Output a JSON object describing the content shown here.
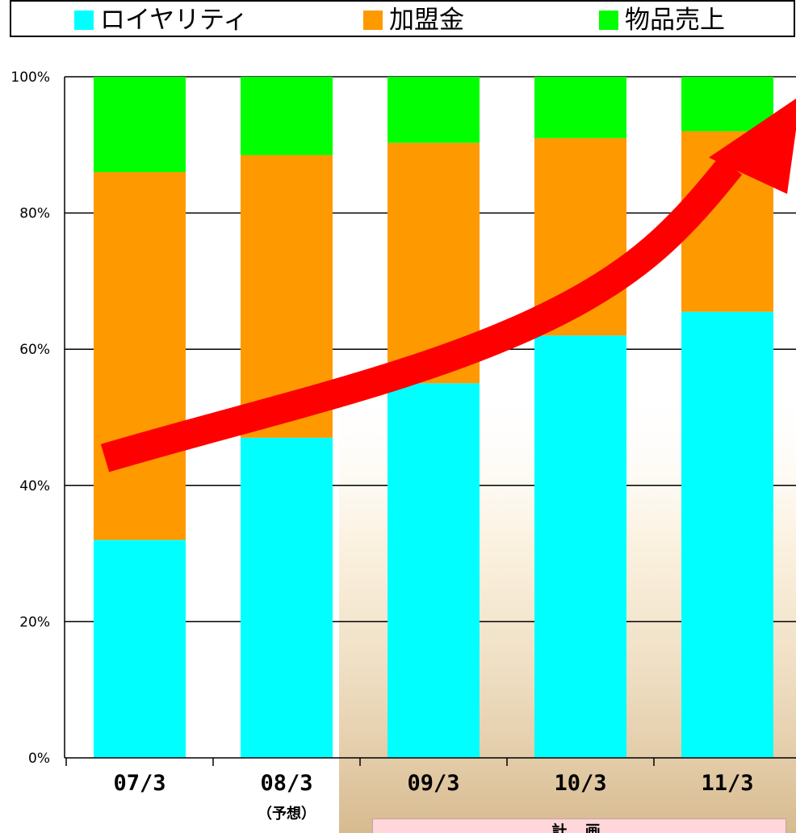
{
  "colors": {
    "royalty": "#00ffff",
    "franchise_fee": "#ff9900",
    "merchandise": "#00ff00",
    "arrow": "#ff0000",
    "plan_box": "#ffd6d9"
  },
  "legend": [
    {
      "label": "ロイヤリティ",
      "color": "#00ffff"
    },
    {
      "label": "加盟金",
      "color": "#ff9900"
    },
    {
      "label": "物品売上",
      "color": "#00ff00"
    }
  ],
  "plan_label": "計 画",
  "chart_data": {
    "type": "bar",
    "stacked": true,
    "categories": [
      "07/3",
      "08/3",
      "09/3",
      "10/3",
      "11/3"
    ],
    "category_sublabels": [
      "",
      "（予想）",
      "",
      "",
      ""
    ],
    "y_ticks": [
      "0%",
      "20%",
      "40%",
      "60%",
      "80%",
      "100%"
    ],
    "ylim": [
      0,
      100
    ],
    "grid": true,
    "legend_position": "top",
    "series": [
      {
        "name": "ロイヤリティ",
        "values": [
          32,
          47,
          55,
          62,
          65.5
        ]
      },
      {
        "name": "加盟金",
        "values": [
          54,
          41.5,
          35.3,
          29,
          26.5
        ]
      },
      {
        "name": "物品売上",
        "values": [
          14,
          11.5,
          9.7,
          9,
          8
        ]
      }
    ],
    "annotations": [
      {
        "type": "trend-arrow",
        "direction": "up",
        "color": "#ff0000"
      }
    ]
  }
}
